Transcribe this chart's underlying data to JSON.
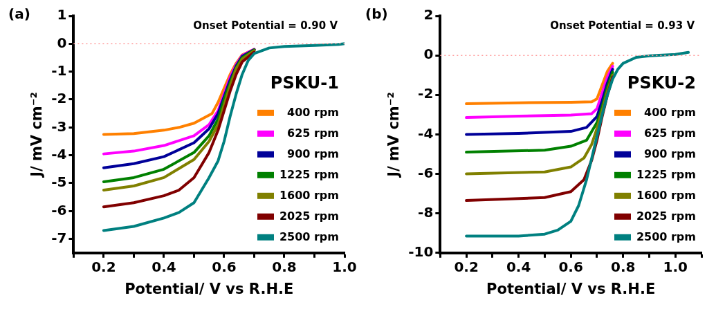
{
  "chart_data": [
    {
      "type": "line",
      "title": "(a)",
      "xlabel": "Potential/ V vs R.H.E",
      "ylabel": "J/ mV cm⁻²",
      "legend_title": "PSKU-1",
      "legend": "bottom right",
      "grid": false,
      "marker": "none",
      "line_style": "solid",
      "annotations": [
        "Onset Potential = 0.90 V"
      ],
      "ref_lines": [
        {
          "axis": "y",
          "value": 0,
          "color": "#ff9999",
          "line_style": "dotted"
        }
      ],
      "xlim": [
        0.1,
        1.0
      ],
      "ylim": [
        -7.5,
        1
      ],
      "xticks": [
        {
          "value": 0.1,
          "label": null
        },
        0.2,
        {
          "value": 0.3,
          "label": null
        },
        0.4,
        {
          "value": 0.5,
          "label": null
        },
        0.6,
        {
          "value": 0.7,
          "label": null
        },
        0.8,
        {
          "value": 0.9,
          "label": null
        },
        {
          "value": 1.0,
          "label": "1.0"
        }
      ],
      "yticks": [
        -7,
        -6,
        -5,
        -4,
        -3,
        -2,
        -1,
        0,
        1
      ],
      "series": [
        {
          "name": "400 rpm",
          "color": "#ff8000",
          "x": [
            0.2,
            0.3,
            0.4,
            0.45,
            0.5,
            0.56,
            0.58,
            0.6,
            0.62,
            0.64,
            0.66,
            0.7
          ],
          "values": [
            -3.25,
            -3.22,
            -3.1,
            -3.0,
            -2.85,
            -2.5,
            -2.1,
            -1.6,
            -1.1,
            -0.7,
            -0.4,
            -0.2
          ]
        },
        {
          "name": "625 rpm",
          "color": "#ff00ff",
          "x": [
            0.2,
            0.3,
            0.4,
            0.5,
            0.55,
            0.58,
            0.6,
            0.62,
            0.64,
            0.66,
            0.7
          ],
          "values": [
            -3.95,
            -3.85,
            -3.65,
            -3.3,
            -2.9,
            -2.4,
            -1.8,
            -1.2,
            -0.75,
            -0.42,
            -0.2
          ]
        },
        {
          "name": "900 rpm",
          "color": "#000099",
          "x": [
            0.2,
            0.3,
            0.4,
            0.5,
            0.55,
            0.58,
            0.6,
            0.62,
            0.64,
            0.66,
            0.7
          ],
          "values": [
            -4.45,
            -4.3,
            -4.05,
            -3.55,
            -3.05,
            -2.5,
            -1.9,
            -1.3,
            -0.8,
            -0.45,
            -0.21
          ]
        },
        {
          "name": "1225 rpm",
          "color": "#008000",
          "x": [
            0.2,
            0.3,
            0.4,
            0.5,
            0.55,
            0.58,
            0.6,
            0.62,
            0.64,
            0.66,
            0.7
          ],
          "values": [
            -4.95,
            -4.8,
            -4.5,
            -3.9,
            -3.3,
            -2.7,
            -2.0,
            -1.4,
            -0.85,
            -0.5,
            -0.22
          ]
        },
        {
          "name": "1600 rpm",
          "color": "#808000",
          "x": [
            0.2,
            0.3,
            0.4,
            0.5,
            0.55,
            0.58,
            0.6,
            0.62,
            0.64,
            0.66,
            0.7
          ],
          "values": [
            -5.25,
            -5.1,
            -4.8,
            -4.15,
            -3.5,
            -2.9,
            -2.2,
            -1.5,
            -0.9,
            -0.55,
            -0.25
          ]
        },
        {
          "name": "2025 rpm",
          "color": "#800000",
          "x": [
            0.2,
            0.3,
            0.4,
            0.45,
            0.5,
            0.55,
            0.58,
            0.6,
            0.62,
            0.64,
            0.66,
            0.7
          ],
          "values": [
            -5.85,
            -5.7,
            -5.45,
            -5.25,
            -4.8,
            -3.9,
            -3.1,
            -2.4,
            -1.7,
            -1.1,
            -0.65,
            -0.3
          ]
        },
        {
          "name": "2500 rpm",
          "color": "#008080",
          "x": [
            0.2,
            0.3,
            0.4,
            0.45,
            0.5,
            0.55,
            0.58,
            0.6,
            0.62,
            0.64,
            0.66,
            0.68,
            0.7,
            0.75,
            0.8,
            0.9,
            0.98,
            1.0
          ],
          "values": [
            -6.7,
            -6.55,
            -6.25,
            -6.05,
            -5.7,
            -4.8,
            -4.2,
            -3.5,
            -2.6,
            -1.8,
            -1.1,
            -0.6,
            -0.35,
            -0.15,
            -0.1,
            -0.06,
            -0.02,
            0.0
          ]
        }
      ]
    },
    {
      "type": "line",
      "title": "(b)",
      "xlabel": "Potential/ V vs R.H.E",
      "ylabel": "J/ mV cm⁻²",
      "legend_title": "PSKU-2",
      "legend": "bottom right",
      "grid": false,
      "marker": "none",
      "line_style": "solid",
      "annotations": [
        "Onset Potential = 0.93 V"
      ],
      "ref_lines": [
        {
          "axis": "y",
          "value": 0,
          "color": "#ff9999",
          "line_style": "dotted"
        }
      ],
      "xlim": [
        0.1,
        1.1
      ],
      "ylim": [
        -10,
        2
      ],
      "xticks": [
        {
          "value": 0.1,
          "label": null
        },
        0.2,
        {
          "value": 0.3,
          "label": null
        },
        0.4,
        {
          "value": 0.5,
          "label": null
        },
        0.6,
        {
          "value": 0.7,
          "label": null
        },
        0.8,
        {
          "value": 0.9,
          "label": null
        },
        {
          "value": 1.0,
          "label": "1.0"
        },
        {
          "value": 1.1,
          "label": null
        }
      ],
      "yticks": [
        -10,
        -8,
        -6,
        -4,
        -2,
        0,
        2
      ],
      "series": [
        {
          "name": "400 rpm",
          "color": "#ff8000",
          "x": [
            0.2,
            0.4,
            0.6,
            0.68,
            0.7,
            0.72,
            0.74,
            0.76
          ],
          "values": [
            -2.45,
            -2.4,
            -2.38,
            -2.35,
            -2.2,
            -1.5,
            -0.8,
            -0.4
          ]
        },
        {
          "name": "625 rpm",
          "color": "#ff00ff",
          "x": [
            0.2,
            0.4,
            0.6,
            0.68,
            0.7,
            0.72,
            0.74,
            0.76
          ],
          "values": [
            -3.15,
            -3.08,
            -3.02,
            -2.95,
            -2.7,
            -1.9,
            -1.1,
            -0.55
          ]
        },
        {
          "name": "900 rpm",
          "color": "#000099",
          "x": [
            0.2,
            0.4,
            0.6,
            0.66,
            0.7,
            0.72,
            0.74,
            0.76
          ],
          "values": [
            -4.0,
            -3.95,
            -3.85,
            -3.65,
            -3.1,
            -2.3,
            -1.4,
            -0.7
          ]
        },
        {
          "name": "1225 rpm",
          "color": "#008000",
          "x": [
            0.2,
            0.5,
            0.6,
            0.66,
            0.7,
            0.72,
            0.74,
            0.76
          ],
          "values": [
            -4.9,
            -4.8,
            -4.6,
            -4.3,
            -3.4,
            -2.6,
            -1.6,
            -0.85
          ]
        },
        {
          "name": "1600 rpm",
          "color": "#808000",
          "x": [
            0.2,
            0.5,
            0.6,
            0.65,
            0.68,
            0.7,
            0.72,
            0.74,
            0.76
          ],
          "values": [
            -6.0,
            -5.9,
            -5.65,
            -5.2,
            -4.5,
            -3.7,
            -2.8,
            -1.8,
            -1.0
          ]
        },
        {
          "name": "2025 rpm",
          "color": "#800000",
          "x": [
            0.2,
            0.5,
            0.6,
            0.65,
            0.68,
            0.7,
            0.72,
            0.74,
            0.76
          ],
          "values": [
            -7.35,
            -7.2,
            -6.9,
            -6.3,
            -5.3,
            -4.3,
            -3.1,
            -2.0,
            -1.1
          ]
        },
        {
          "name": "2500 rpm",
          "color": "#008080",
          "x": [
            0.2,
            0.4,
            0.5,
            0.55,
            0.6,
            0.63,
            0.66,
            0.68,
            0.7,
            0.72,
            0.74,
            0.76,
            0.78,
            0.8,
            0.85,
            0.9,
            1.0,
            1.05
          ],
          "values": [
            -9.15,
            -9.15,
            -9.05,
            -8.85,
            -8.4,
            -7.6,
            -6.3,
            -5.2,
            -4.1,
            -3.0,
            -2.0,
            -1.2,
            -0.7,
            -0.4,
            -0.1,
            -0.02,
            0.05,
            0.15
          ]
        }
      ]
    }
  ]
}
